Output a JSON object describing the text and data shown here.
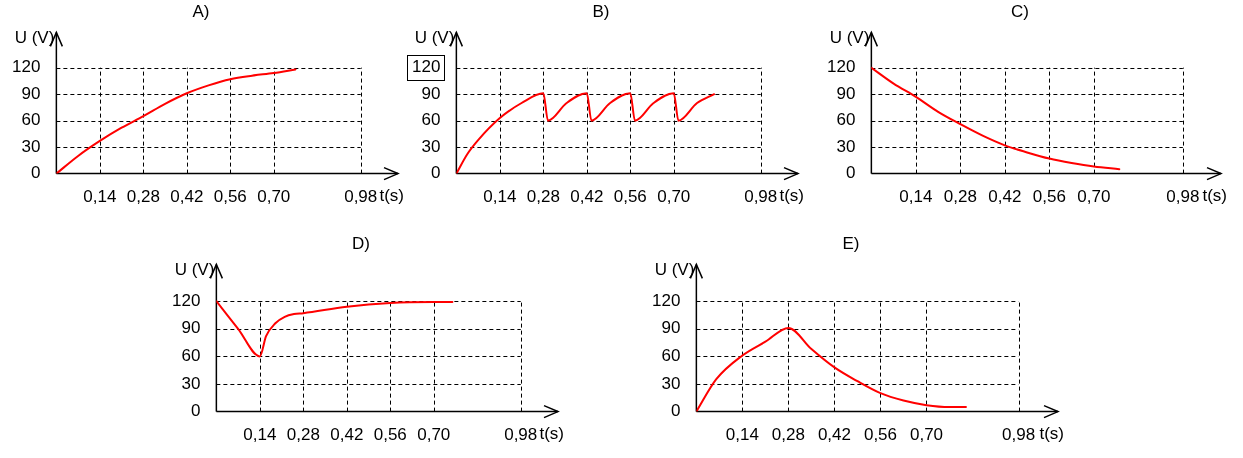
{
  "chart_data": [
    {
      "type": "line",
      "title": "A)",
      "xlabel": "t(s)",
      "ylabel": "U (V)",
      "xlim": [
        0,
        1.1
      ],
      "ylim": [
        0,
        160
      ],
      "xticks": [
        {
          "value": 0.14,
          "label": "0,14"
        },
        {
          "value": 0.28,
          "label": "0,28"
        },
        {
          "value": 0.42,
          "label": "0,42"
        },
        {
          "value": 0.56,
          "label": "0,56"
        },
        {
          "value": 0.7,
          "label": "0,70"
        },
        {
          "value": 0.98,
          "label": "0,98"
        }
      ],
      "yticks": [
        0,
        30,
        60,
        90,
        120
      ],
      "grid": true,
      "legend": false,
      "marker": "none",
      "line_style": "solid",
      "series": [
        {
          "color": "#ff0000",
          "x": [
            0,
            0.07,
            0.14,
            0.21,
            0.28,
            0.35,
            0.42,
            0.49,
            0.56,
            0.63,
            0.7,
            0.77
          ],
          "values": [
            0,
            20,
            37,
            52,
            65,
            79,
            91,
            100,
            107,
            111,
            114,
            118
          ]
        }
      ]
    },
    {
      "type": "line",
      "title": "B)",
      "xlabel": "t(s)",
      "ylabel": "U (V)",
      "xlim": [
        0,
        1.1
      ],
      "ylim": [
        0,
        160
      ],
      "xticks": [
        {
          "value": 0.14,
          "label": "0,14"
        },
        {
          "value": 0.28,
          "label": "0,28"
        },
        {
          "value": 0.42,
          "label": "0,42"
        },
        {
          "value": 0.56,
          "label": "0,56"
        },
        {
          "value": 0.7,
          "label": "0,70"
        },
        {
          "value": 0.98,
          "label": "0,98"
        }
      ],
      "yticks": [
        0,
        30,
        60,
        90,
        120
      ],
      "grid": true,
      "legend": false,
      "marker": "none",
      "line_style": "solid",
      "series": [
        {
          "color": "#ff0000",
          "x": [
            0,
            0.035,
            0.07,
            0.14,
            0.21,
            0.28,
            0.295,
            0.355,
            0.42,
            0.435,
            0.495,
            0.56,
            0.575,
            0.635,
            0.7,
            0.715,
            0.775,
            0.83
          ],
          "values": [
            0,
            22,
            38,
            63,
            80,
            91,
            60,
            80,
            91,
            60,
            80,
            91,
            60,
            80,
            91,
            60,
            80,
            90
          ]
        }
      ]
    },
    {
      "type": "line",
      "title": "C)",
      "xlabel": "t(s)",
      "ylabel": "U (V)",
      "xlim": [
        0,
        1.1
      ],
      "ylim": [
        0,
        160
      ],
      "xticks": [
        {
          "value": 0.14,
          "label": "0,14"
        },
        {
          "value": 0.28,
          "label": "0,28"
        },
        {
          "value": 0.42,
          "label": "0,42"
        },
        {
          "value": 0.56,
          "label": "0,56"
        },
        {
          "value": 0.7,
          "label": "0,70"
        },
        {
          "value": 0.98,
          "label": "0,98"
        }
      ],
      "yticks": [
        0,
        30,
        60,
        90,
        120
      ],
      "grid": true,
      "legend": false,
      "marker": "none",
      "line_style": "solid",
      "series": [
        {
          "color": "#ff0000",
          "x": [
            0,
            0.07,
            0.14,
            0.21,
            0.28,
            0.35,
            0.42,
            0.49,
            0.56,
            0.63,
            0.7,
            0.78
          ],
          "values": [
            120,
            102,
            87,
            70,
            56,
            43,
            32,
            24,
            17,
            12,
            8,
            5
          ]
        }
      ]
    },
    {
      "type": "line",
      "title": "D)",
      "xlabel": "t(s)",
      "ylabel": "U (V)",
      "xlim": [
        0,
        1.1
      ],
      "ylim": [
        0,
        160
      ],
      "xticks": [
        {
          "value": 0.14,
          "label": "0,14"
        },
        {
          "value": 0.28,
          "label": "0,28"
        },
        {
          "value": 0.42,
          "label": "0,42"
        },
        {
          "value": 0.56,
          "label": "0,56"
        },
        {
          "value": 0.7,
          "label": "0,70"
        },
        {
          "value": 0.98,
          "label": "0,98"
        }
      ],
      "yticks": [
        0,
        30,
        60,
        90,
        120
      ],
      "grid": true,
      "legend": false,
      "marker": "none",
      "line_style": "solid",
      "series": [
        {
          "color": "#ff0000",
          "x": [
            0,
            0.07,
            0.14,
            0.16,
            0.19,
            0.22,
            0.25,
            0.28,
            0.42,
            0.56,
            0.7,
            0.76
          ],
          "values": [
            120,
            90,
            60,
            82,
            96,
            103,
            106,
            107,
            114,
            118,
            119,
            119
          ]
        }
      ]
    },
    {
      "type": "line",
      "title": "E)",
      "xlabel": "t(s)",
      "ylabel": "U (V)",
      "xlim": [
        0,
        1.1
      ],
      "ylim": [
        0,
        160
      ],
      "xticks": [
        {
          "value": 0.14,
          "label": "0,14"
        },
        {
          "value": 0.28,
          "label": "0,28"
        },
        {
          "value": 0.42,
          "label": "0,42"
        },
        {
          "value": 0.56,
          "label": "0,56"
        },
        {
          "value": 0.7,
          "label": "0,70"
        },
        {
          "value": 0.98,
          "label": "0,98"
        }
      ],
      "yticks": [
        0,
        30,
        60,
        90,
        120
      ],
      "grid": true,
      "legend": false,
      "marker": "none",
      "line_style": "solid",
      "series": [
        {
          "color": "#ff0000",
          "x": [
            0,
            0.06,
            0.14,
            0.21,
            0.28,
            0.35,
            0.42,
            0.49,
            0.56,
            0.63,
            0.7,
            0.77,
            0.82
          ],
          "values": [
            0,
            35,
            61,
            76,
            91,
            68,
            48,
            33,
            20,
            12,
            7,
            5,
            5
          ]
        }
      ]
    }
  ]
}
